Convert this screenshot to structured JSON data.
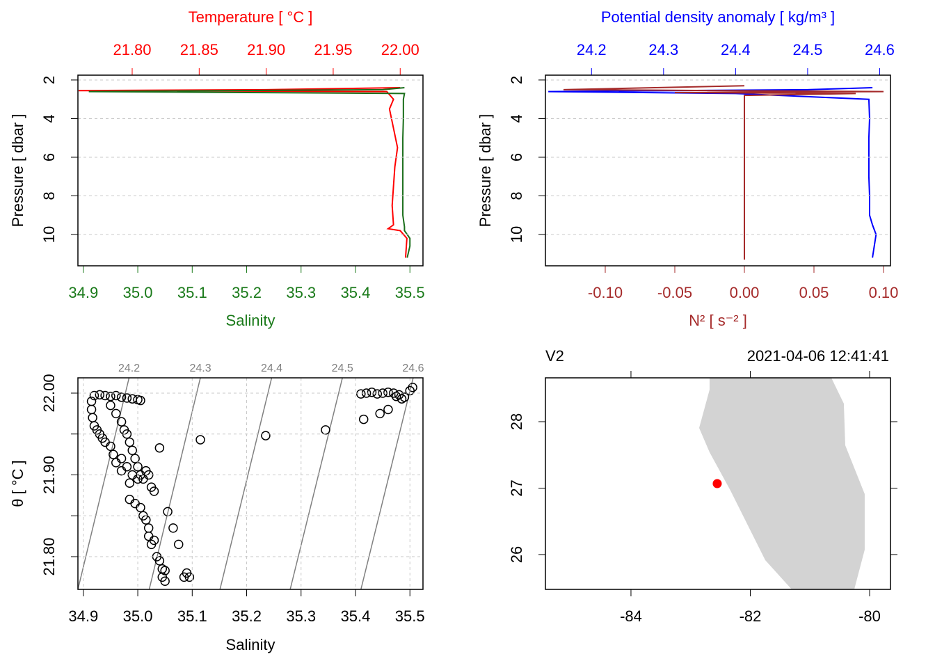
{
  "chart_data": [
    {
      "type": "profile",
      "title": "Temperature [ °C ]",
      "x_label": "Salinity",
      "y_label": "Pressure [ dbar ]",
      "xcolor": "#1a7a1a",
      "x2color": "#ff0000",
      "xlim": [
        34.89,
        35.524
      ],
      "xticks": [
        34.9,
        {
          "value": 35.0,
          "label": "35.0"
        },
        35.1,
        35.2,
        35.3,
        35.4,
        35.5
      ],
      "x2lim": [
        21.7595,
        22.017
      ],
      "x2ticks": [
        {
          "value": 21.8,
          "label": "21.80"
        },
        {
          "value": 21.85,
          "label": "21.85"
        },
        {
          "value": 21.9,
          "label": "21.90"
        },
        {
          "value": 21.95,
          "label": "21.95"
        },
        {
          "value": 22.0,
          "label": "22.00"
        }
      ],
      "ylim": [
        1.75,
        11.62
      ],
      "y_reversed": true,
      "yticks": [
        2,
        4,
        6,
        8,
        10
      ],
      "grid": "y",
      "series": [
        {
          "color": "#ff0000",
          "axis": "x2",
          "y": [
            2.4,
            2.5,
            2.55,
            2.6,
            3,
            3.5,
            4.5,
            5.5,
            6.5,
            7.5,
            8.5,
            9.5,
            9.7,
            9.8,
            10.2,
            11.2
          ],
          "values": [
            22.0,
            21.9,
            21.76,
            21.99,
            21.995,
            21.992,
            21.995,
            21.998,
            21.996,
            21.995,
            21.994,
            21.995,
            21.991,
            22.0,
            22.005,
            22.004
          ]
        },
        {
          "color": "#1a6e1a",
          "axis": "x",
          "y": [
            2.4,
            2.5,
            2.6,
            2.65,
            2.7,
            3,
            4,
            5,
            6,
            7,
            8,
            9,
            9.6,
            9.8,
            10.2,
            10.6,
            11.2
          ],
          "values": [
            35.49,
            35.45,
            34.91,
            35.2,
            35.49,
            35.488,
            35.488,
            35.487,
            35.487,
            35.487,
            35.487,
            35.487,
            35.49,
            35.49,
            35.5,
            35.5,
            35.495
          ]
        }
      ]
    },
    {
      "type": "profile",
      "title": "Potential density anomaly [ kg/m³ ]",
      "x_label": "N² [ s⁻² ]",
      "y_label": "Pressure [ dbar ]",
      "xcolor": "#a52a2a",
      "x2color": "#0000ff",
      "xlim": [
        -0.143,
        0.105
      ],
      "xticks": [
        {
          "value": -0.1,
          "label": "-0.10"
        },
        -0.05,
        {
          "value": 0,
          "label": "0.00"
        },
        0.05,
        {
          "value": 0.1,
          "label": "0.10"
        }
      ],
      "x2lim": [
        24.136,
        24.615
      ],
      "x2ticks": [
        24.2,
        24.3,
        24.4,
        24.5,
        24.6
      ],
      "ylim": [
        1.75,
        11.62
      ],
      "y_reversed": true,
      "yticks": [
        2,
        4,
        6,
        8,
        10
      ],
      "grid": "y",
      "series": [
        {
          "color": "#0000ff",
          "axis": "x2",
          "y": [
            2.4,
            2.5,
            2.6,
            2.7,
            3,
            4,
            5,
            6,
            7,
            8,
            9,
            9.5,
            10,
            11.2
          ],
          "values": [
            24.59,
            24.5,
            24.14,
            24.4,
            24.585,
            24.586,
            24.585,
            24.585,
            24.585,
            24.586,
            24.586,
            24.59,
            24.595,
            24.59
          ]
        },
        {
          "color": "#a52a2a",
          "axis": "x",
          "y": [
            2.3,
            2.5,
            2.6,
            2.65,
            2.7,
            2.8,
            4,
            6,
            8,
            10,
            11.3
          ],
          "values": [
            0,
            -0.13,
            0.1,
            -0.05,
            0.08,
            0,
            0,
            0,
            0,
            0,
            0
          ]
        }
      ]
    },
    {
      "type": "ts",
      "x_label": "Salinity",
      "y_label": "θ [ °C ]",
      "xlim": [
        34.89,
        35.524
      ],
      "xticks": [
        34.9,
        {
          "value": 35.0,
          "label": "35.0"
        },
        35.1,
        35.2,
        35.3,
        35.4,
        35.5
      ],
      "ylim": [
        21.76,
        22.0187
      ],
      "yticks": [
        {
          "value": 21.8,
          "label": "21.80"
        },
        {
          "value": 21.9,
          "label": "21.90"
        },
        {
          "value": 22.0,
          "label": "22.00"
        }
      ],
      "yticks_minor": [
        21.85,
        21.95
      ],
      "grid": "both",
      "isopycnal_color": "#808080",
      "isopycnals": [
        {
          "sigma": 24.2,
          "s": [
            34.89,
            34.984
          ],
          "t": [
            21.76,
            22.0187
          ]
        },
        {
          "sigma": 24.3,
          "s": [
            35.021,
            35.115
          ],
          "t": [
            21.76,
            22.0187
          ]
        },
        {
          "sigma": 24.4,
          "s": [
            35.151,
            35.246
          ],
          "t": [
            21.76,
            22.0187
          ]
        },
        {
          "sigma": 24.5,
          "s": [
            35.28,
            35.376
          ],
          "t": [
            21.76,
            22.0187
          ]
        },
        {
          "sigma": 24.6,
          "s": [
            35.41,
            35.506
          ],
          "t": [
            21.76,
            22.0187
          ]
        }
      ],
      "x": [
        34.92,
        34.93,
        34.94,
        34.95,
        34.96,
        34.97,
        34.98,
        34.99,
        35.0,
        35.005,
        34.915,
        34.915,
        34.917,
        34.92,
        34.925,
        34.93,
        34.935,
        34.94,
        34.95,
        34.955,
        34.96,
        34.95,
        34.96,
        34.97,
        34.975,
        34.98,
        34.985,
        34.99,
        34.995,
        35.0,
        35.005,
        35.01,
        35.015,
        35.02,
        34.97,
        34.98,
        34.99,
        35.0,
        35.04,
        34.985,
        34.97,
        35.025,
        35.03,
        34.985,
        34.995,
        35.005,
        35.01,
        35.015,
        35.02,
        35.02,
        35.03,
        35.025,
        35.035,
        35.04,
        35.045,
        35.045,
        35.05,
        35.055,
        35.065,
        35.075,
        35.085,
        35.09,
        35.095,
        35.05,
        35.115,
        35.235,
        35.345,
        35.415,
        35.445,
        35.46,
        35.41,
        35.42,
        35.43,
        35.44,
        35.45,
        35.46,
        35.47,
        35.48,
        35.49,
        35.5,
        35.485,
        35.505,
        35.475
      ],
      "y": [
        21.997,
        21.998,
        21.997,
        21.996,
        21.997,
        21.995,
        21.994,
        21.993,
        21.992,
        21.991,
        21.99,
        21.98,
        21.97,
        21.96,
        21.955,
        21.95,
        21.945,
        21.94,
        21.935,
        21.925,
        21.915,
        21.985,
        21.975,
        21.965,
        21.955,
        21.95,
        21.94,
        21.93,
        21.92,
        21.91,
        21.9,
        21.895,
        21.905,
        21.9,
        21.92,
        21.91,
        21.9,
        21.895,
        21.933,
        21.89,
        21.905,
        21.885,
        21.88,
        21.87,
        21.865,
        21.86,
        21.85,
        21.845,
        21.835,
        21.825,
        21.82,
        21.815,
        21.8,
        21.795,
        21.785,
        21.775,
        21.77,
        21.855,
        21.835,
        21.815,
        21.775,
        21.78,
        21.775,
        21.783,
        21.943,
        21.948,
        21.955,
        21.968,
        21.975,
        21.98,
        21.999,
        22.0,
        22.001,
        21.999,
        22.0,
        22.001,
        22.0,
        21.998,
        21.995,
        22.003,
        21.993,
        22.007,
        21.996
      ]
    },
    {
      "type": "map",
      "station_name": "V2",
      "time": "2021-04-06 12:41:41",
      "xlim": [
        -85.434,
        -79.65
      ],
      "xticks": [
        -84,
        -82,
        -80
      ],
      "ylim": [
        25.476,
        28.66
      ],
      "yticks": [
        26,
        27,
        28
      ],
      "land_color": "#d3d3d3",
      "coastline": {
        "lon": [
          -82.682,
          -80.641,
          -80.432,
          -80.408,
          -80.082,
          -80.082,
          -80.257,
          -81.306,
          -81.749,
          -82.332,
          -82.682,
          -82.857,
          -82.682
        ],
        "lat": [
          28.66,
          28.66,
          28.272,
          27.644,
          26.911,
          26.073,
          25.476,
          25.476,
          25.916,
          26.963,
          27.539,
          27.906,
          28.482
        ]
      },
      "station": {
        "lon": -82.554,
        "lat": 27.068,
        "color": "#ff0000"
      }
    }
  ]
}
